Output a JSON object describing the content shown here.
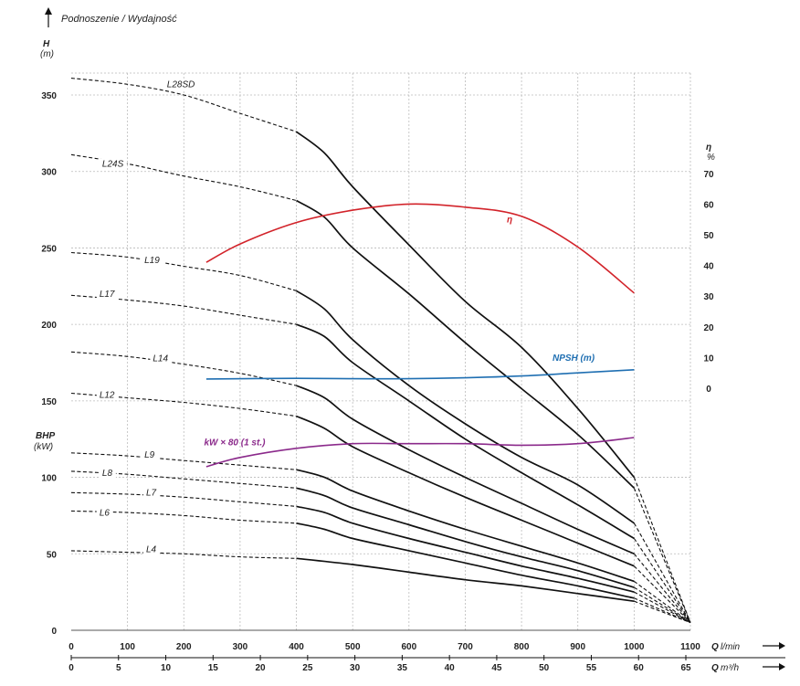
{
  "chart_data": {
    "type": "line",
    "title": "Podnoszenie / Wydajność",
    "colors": {
      "grid": "#bbbbbb",
      "curve": "#111111",
      "eta": "#d2232a",
      "npsh": "#1f6fb2",
      "power": "#8b2a8b"
    },
    "y_left": {
      "label_main": "H",
      "unit_main": "(m)",
      "label_bhp": "BHP",
      "unit_bhp": "(kW)",
      "range": [
        0,
        360
      ],
      "ticks": [
        "0",
        "50",
        "100",
        "150",
        "200",
        "250",
        "300",
        "350"
      ]
    },
    "y_right": {
      "label": "η",
      "unit": "%",
      "range": [
        0,
        70
      ],
      "ticks": [
        "0",
        "10",
        "20",
        "30",
        "40",
        "50",
        "60",
        "70"
      ]
    },
    "x_axis": {
      "label": "Q",
      "unit": "l/min",
      "range": [
        0,
        1100
      ],
      "ticks": [
        "0",
        "100",
        "200",
        "300",
        "400",
        "500",
        "600",
        "700",
        "800",
        "900",
        "1000",
        "1100"
      ]
    },
    "x_axis2": {
      "label": "Q",
      "unit": "m³/h",
      "range": [
        0,
        65
      ],
      "ticks": [
        "0",
        "5",
        "10",
        "15",
        "20",
        "25",
        "30",
        "35",
        "40",
        "45",
        "50",
        "55",
        "60",
        "65"
      ]
    },
    "series": [
      {
        "name": "L28SD",
        "label_at": [
          170,
          355
        ],
        "dashed_until": 400,
        "points": [
          [
            0,
            361
          ],
          [
            100,
            357
          ],
          [
            200,
            350
          ],
          [
            300,
            338
          ],
          [
            400,
            326
          ],
          [
            450,
            312
          ],
          [
            500,
            290
          ],
          [
            600,
            252
          ],
          [
            700,
            215
          ],
          [
            800,
            185
          ],
          [
            900,
            145
          ],
          [
            1000,
            100
          ],
          [
            1100,
            5
          ]
        ]
      },
      {
        "name": "L24S",
        "label_at": [
          55,
          303
        ],
        "dashed_until": 400,
        "points": [
          [
            0,
            311
          ],
          [
            100,
            305
          ],
          [
            200,
            297
          ],
          [
            300,
            290
          ],
          [
            400,
            281
          ],
          [
            450,
            270
          ],
          [
            500,
            250
          ],
          [
            600,
            220
          ],
          [
            700,
            188
          ],
          [
            800,
            158
          ],
          [
            900,
            128
          ],
          [
            1000,
            93
          ],
          [
            1100,
            5
          ]
        ]
      },
      {
        "name": "L19",
        "label_at": [
          130,
          240
        ],
        "dashed_until": 400,
        "points": [
          [
            0,
            247
          ],
          [
            100,
            244
          ],
          [
            200,
            238
          ],
          [
            300,
            232
          ],
          [
            400,
            222
          ],
          [
            450,
            210
          ],
          [
            500,
            190
          ],
          [
            600,
            160
          ],
          [
            700,
            135
          ],
          [
            800,
            113
          ],
          [
            900,
            95
          ],
          [
            1000,
            70
          ],
          [
            1100,
            5
          ]
        ]
      },
      {
        "name": "L17",
        "label_at": [
          50,
          218
        ],
        "dashed_until": 400,
        "points": [
          [
            0,
            219
          ],
          [
            100,
            216
          ],
          [
            200,
            212
          ],
          [
            300,
            206
          ],
          [
            400,
            200
          ],
          [
            450,
            192
          ],
          [
            500,
            175
          ],
          [
            600,
            150
          ],
          [
            700,
            125
          ],
          [
            800,
            103
          ],
          [
            900,
            82
          ],
          [
            1000,
            60
          ],
          [
            1100,
            5
          ]
        ]
      },
      {
        "name": "L14",
        "label_at": [
          145,
          176
        ],
        "dashed_until": 400,
        "points": [
          [
            0,
            182
          ],
          [
            100,
            179
          ],
          [
            200,
            174
          ],
          [
            300,
            168
          ],
          [
            400,
            160
          ],
          [
            450,
            152
          ],
          [
            500,
            138
          ],
          [
            600,
            118
          ],
          [
            700,
            100
          ],
          [
            800,
            83
          ],
          [
            900,
            66
          ],
          [
            1000,
            50
          ],
          [
            1100,
            5
          ]
        ]
      },
      {
        "name": "L12",
        "label_at": [
          50,
          152
        ],
        "dashed_until": 400,
        "points": [
          [
            0,
            155
          ],
          [
            100,
            152
          ],
          [
            200,
            149
          ],
          [
            300,
            145
          ],
          [
            400,
            140
          ],
          [
            450,
            132
          ],
          [
            500,
            120
          ],
          [
            600,
            103
          ],
          [
            700,
            87
          ],
          [
            800,
            72
          ],
          [
            900,
            57
          ],
          [
            1000,
            42
          ],
          [
            1100,
            5
          ]
        ]
      },
      {
        "name": "L9",
        "label_at": [
          130,
          113
        ],
        "dashed_until": 400,
        "points": [
          [
            0,
            116
          ],
          [
            100,
            114
          ],
          [
            200,
            111
          ],
          [
            300,
            108
          ],
          [
            400,
            105
          ],
          [
            450,
            100
          ],
          [
            500,
            91
          ],
          [
            600,
            78
          ],
          [
            700,
            66
          ],
          [
            800,
            55
          ],
          [
            900,
            44
          ],
          [
            1000,
            32
          ],
          [
            1100,
            5
          ]
        ]
      },
      {
        "name": "L8",
        "label_at": [
          55,
          101
        ],
        "dashed_until": 400,
        "points": [
          [
            0,
            104
          ],
          [
            100,
            102
          ],
          [
            200,
            99
          ],
          [
            300,
            96
          ],
          [
            400,
            93
          ],
          [
            450,
            88
          ],
          [
            500,
            80
          ],
          [
            600,
            69
          ],
          [
            700,
            58
          ],
          [
            800,
            48
          ],
          [
            900,
            39
          ],
          [
            1000,
            28
          ],
          [
            1100,
            5
          ]
        ]
      },
      {
        "name": "L7",
        "label_at": [
          133,
          88
        ],
        "dashed_until": 400,
        "points": [
          [
            0,
            90
          ],
          [
            100,
            89
          ],
          [
            200,
            87
          ],
          [
            300,
            84
          ],
          [
            400,
            81
          ],
          [
            450,
            77
          ],
          [
            500,
            70
          ],
          [
            600,
            60
          ],
          [
            700,
            51
          ],
          [
            800,
            42
          ],
          [
            900,
            34
          ],
          [
            1000,
            25
          ],
          [
            1100,
            5
          ]
        ]
      },
      {
        "name": "L6",
        "label_at": [
          50,
          75
        ],
        "dashed_until": 400,
        "points": [
          [
            0,
            78
          ],
          [
            100,
            77
          ],
          [
            200,
            75
          ],
          [
            300,
            72
          ],
          [
            400,
            70
          ],
          [
            450,
            66
          ],
          [
            500,
            60
          ],
          [
            600,
            52
          ],
          [
            700,
            44
          ],
          [
            800,
            36
          ],
          [
            900,
            29
          ],
          [
            1000,
            21
          ],
          [
            1100,
            5
          ]
        ]
      },
      {
        "name": "L4",
        "label_at": [
          133,
          51
        ],
        "dashed_until": 400,
        "points": [
          [
            0,
            52
          ],
          [
            100,
            51
          ],
          [
            200,
            50
          ],
          [
            300,
            48
          ],
          [
            400,
            47
          ],
          [
            500,
            43
          ],
          [
            600,
            38
          ],
          [
            700,
            33
          ],
          [
            800,
            29
          ],
          [
            900,
            24
          ],
          [
            1000,
            19
          ],
          [
            1100,
            5
          ]
        ]
      }
    ],
    "extra_curves": [
      {
        "name": "η",
        "axis": "right",
        "color_key": "eta",
        "label_at": [
          855,
          54
        ],
        "points": [
          [
            240,
            41
          ],
          [
            300,
            47
          ],
          [
            400,
            54
          ],
          [
            500,
            58
          ],
          [
            600,
            60
          ],
          [
            700,
            59
          ],
          [
            800,
            56
          ],
          [
            900,
            46
          ],
          [
            1000,
            31
          ]
        ]
      },
      {
        "name": "NPSH (m)",
        "axis": "right",
        "color_key": "npsh",
        "label_at": [
          905,
          9
        ],
        "points": [
          [
            240,
            3
          ],
          [
            400,
            3.2
          ],
          [
            500,
            3.1
          ],
          [
            600,
            3.1
          ],
          [
            700,
            3.4
          ],
          [
            800,
            4
          ],
          [
            900,
            5
          ],
          [
            1000,
            6
          ]
        ]
      },
      {
        "name": "kW × 80 (1 st.)",
        "axis": "left",
        "color_key": "power",
        "label_at": [
          236,
          121
        ],
        "points": [
          [
            240,
            107
          ],
          [
            300,
            113
          ],
          [
            400,
            119
          ],
          [
            500,
            122
          ],
          [
            600,
            122
          ],
          [
            700,
            122
          ],
          [
            800,
            121
          ],
          [
            900,
            122
          ],
          [
            1000,
            126
          ]
        ]
      }
    ]
  }
}
